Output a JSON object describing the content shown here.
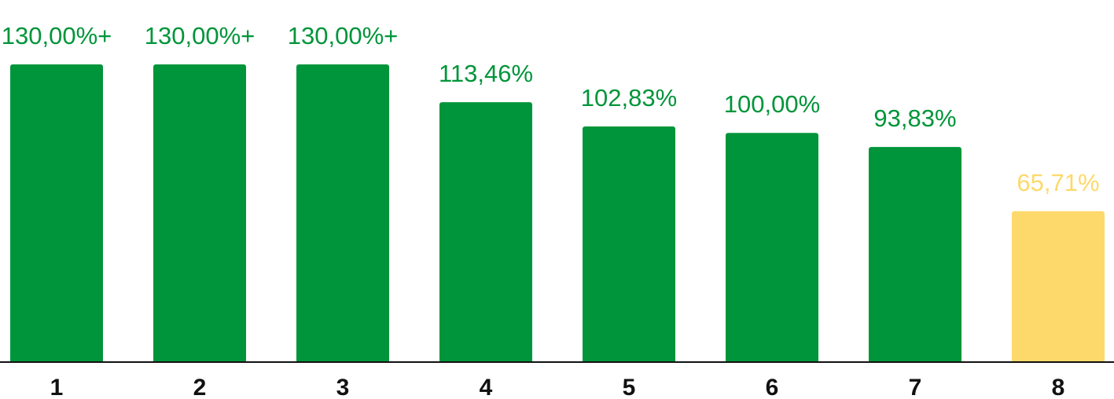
{
  "chart_data": {
    "type": "bar",
    "title": "",
    "xlabel": "",
    "ylabel": "",
    "ylim": [
      0,
      130
    ],
    "grid": false,
    "categories": [
      "1",
      "2",
      "3",
      "4",
      "5",
      "6",
      "7",
      "8"
    ],
    "values": [
      130,
      130,
      130,
      113.46,
      102.83,
      100,
      93.83,
      65.71
    ],
    "labels": [
      "130,00%+",
      "130,00%+",
      "130,00%+",
      "113,46%",
      "102,83%",
      "100,00%",
      "93,83%",
      "65,71%"
    ],
    "colors": [
      "#00953a",
      "#00953a",
      "#00953a",
      "#00953a",
      "#00953a",
      "#00953a",
      "#00953a",
      "#fdd96b"
    ],
    "axis_color": "#111111"
  }
}
